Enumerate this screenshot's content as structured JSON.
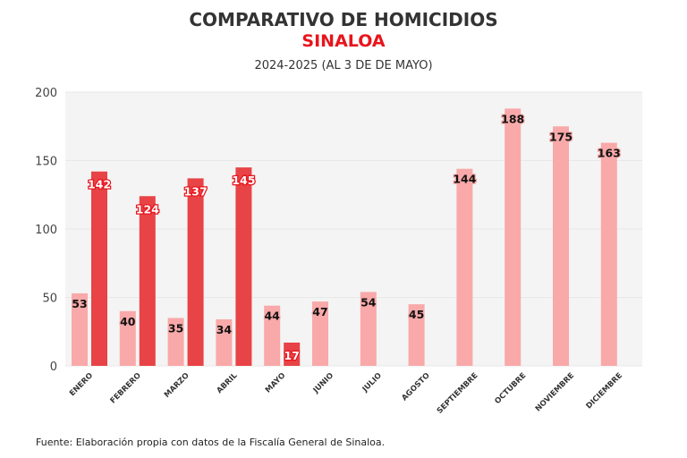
{
  "chart_data": {
    "type": "bar",
    "title": "COMPARATIVO DE HOMICIDIOS",
    "subtitle": "SINALOA",
    "subtitle2": "2024-2025 (AL 3 DE DE MAYO)",
    "source": "Fuente: Elaboración propia con datos de la Fiscalía General de Sinaloa.",
    "categories": [
      "ENERO",
      "FEBRERO",
      "MARZO",
      "ABRIL",
      "MAYO",
      "JUNIO",
      "JULIO",
      "AGOSTO",
      "SEPTIEMBRE",
      "OCTUBRE",
      "NOVIEMBRE",
      "DICIEMBRE"
    ],
    "series": [
      {
        "values": [
          53,
          40,
          35,
          34,
          44,
          47,
          54,
          45,
          144,
          188,
          175,
          163
        ],
        "color": "#f9a9a9"
      },
      {
        "values": [
          142,
          124,
          137,
          145,
          17,
          null,
          null,
          null,
          null,
          null,
          null,
          null
        ],
        "color": "#e84346"
      }
    ],
    "yticks": [
      0,
      50,
      100,
      150,
      200
    ],
    "ylim": [
      0,
      200
    ],
    "grid": true,
    "legend": "none"
  }
}
